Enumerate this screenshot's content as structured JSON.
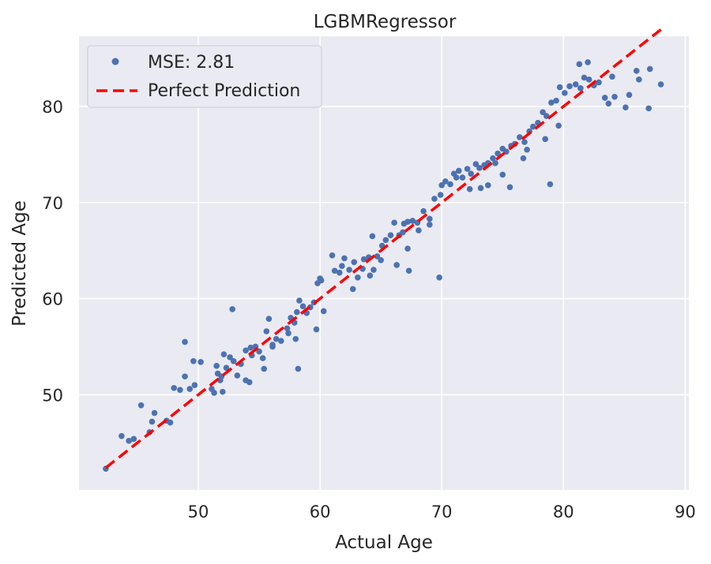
{
  "chart_data": {
    "type": "scatter",
    "title": "LGBMRegressor",
    "xlabel": "Actual Age",
    "ylabel": "Predicted Age",
    "xlim": [
      40.2,
      90.3
    ],
    "ylim": [
      40.1,
      87.3
    ],
    "xticks": [
      50,
      60,
      70,
      80,
      90
    ],
    "yticks": [
      50,
      60,
      70,
      80
    ],
    "grid": true,
    "legend_position": "top-left",
    "colors": {
      "background": "#eaeaf2",
      "grid": "#ffffff",
      "points": "#4c72b0",
      "reference_line": "#ff0000"
    },
    "series": [
      {
        "name": "MSE: 2.81",
        "kind": "scatter",
        "color": "#4c72b0",
        "x": [
          42.4,
          43.7,
          44.3,
          44.7,
          45.3,
          46.0,
          46.2,
          46.4,
          47.4,
          47.7,
          48.0,
          48.5,
          48.9,
          49.3,
          49.6,
          49.7,
          50.2,
          51.1,
          51.3,
          51.5,
          51.8,
          51.9,
          52.0,
          52.1,
          52.3,
          52.6,
          52.9,
          53.2,
          53.5,
          53.9,
          54.2,
          54.4,
          54.7,
          55.0,
          55.3,
          55.6,
          55.8,
          56.1,
          56.4,
          56.8,
          57.3,
          57.6,
          57.9,
          58.1,
          58.3,
          58.6,
          58.9,
          59.2,
          59.5,
          59.8,
          60.1,
          61.0,
          61.2,
          61.6,
          62.0,
          62.4,
          62.8,
          63.1,
          63.6,
          64.0,
          64.3,
          64.7,
          65.1,
          65.4,
          65.8,
          66.1,
          66.5,
          66.9,
          67.2,
          67.6,
          68.0,
          68.5,
          69.0,
          69.4,
          69.9,
          70.3,
          70.7,
          71.0,
          71.4,
          71.7,
          72.1,
          72.4,
          72.8,
          73.1,
          73.5,
          73.8,
          74.2,
          74.6,
          75.0,
          75.3,
          75.7,
          76.0,
          76.4,
          76.8,
          77.2,
          77.5,
          77.9,
          78.3,
          78.6,
          79.0,
          79.4,
          79.7,
          80.1,
          81.0,
          81.4,
          81.7,
          82.1,
          82.5,
          82.9,
          83.4,
          84.2,
          85.1,
          86.2,
          87.0,
          88.0,
          54.3,
          56.1,
          58.0,
          60.3,
          62.7,
          64.4,
          66.3,
          67.2,
          68.1,
          69.0,
          72.3,
          73.8,
          75.0,
          76.7,
          78.5,
          79.6,
          60.0,
          61.8,
          63.5,
          65.0,
          66.8,
          70.0,
          71.2,
          74.4,
          77.0,
          80.5,
          82.0,
          84.0,
          86.0,
          87.1,
          48.9,
          51.6,
          53.9,
          57.4,
          58.2,
          52.8,
          55.4,
          59.7,
          64.1,
          67.3,
          69.8,
          73.2,
          75.6,
          78.9,
          81.3,
          83.7,
          85.4
        ],
        "y": [
          42.3,
          45.7,
          45.2,
          45.4,
          48.9,
          46.1,
          47.2,
          48.1,
          47.3,
          47.1,
          50.7,
          50.5,
          55.5,
          50.6,
          53.5,
          51.0,
          53.4,
          50.6,
          50.2,
          53.0,
          51.5,
          51.9,
          50.3,
          54.2,
          52.8,
          53.9,
          53.5,
          52.0,
          53.2,
          51.5,
          51.3,
          54.1,
          55.0,
          54.5,
          53.8,
          56.6,
          57.9,
          55.2,
          55.8,
          55.6,
          56.9,
          58.0,
          57.5,
          58.6,
          59.8,
          59.2,
          58.5,
          59.1,
          59.6,
          61.6,
          61.9,
          64.5,
          62.9,
          62.7,
          64.2,
          63.0,
          63.8,
          62.2,
          64.1,
          64.3,
          66.5,
          64.4,
          65.5,
          66.1,
          66.6,
          67.9,
          66.6,
          67.8,
          68.0,
          68.1,
          67.9,
          69.1,
          68.3,
          70.4,
          70.8,
          72.2,
          71.9,
          73.0,
          73.3,
          72.6,
          73.5,
          73.0,
          74.0,
          73.6,
          73.9,
          74.1,
          74.6,
          75.1,
          75.6,
          75.3,
          75.9,
          76.1,
          76.8,
          76.3,
          77.4,
          77.9,
          78.3,
          79.4,
          79.0,
          80.4,
          80.6,
          82.0,
          81.4,
          82.3,
          81.9,
          83.0,
          82.8,
          82.2,
          82.5,
          80.9,
          81.0,
          79.9,
          82.8,
          79.8,
          82.3,
          54.9,
          55.0,
          55.8,
          58.7,
          61.0,
          63.0,
          63.5,
          65.2,
          67.1,
          67.7,
          71.4,
          71.8,
          72.9,
          74.6,
          76.6,
          78.0,
          62.1,
          63.4,
          63.1,
          64.0,
          66.9,
          71.8,
          72.6,
          74.1,
          75.5,
          82.1,
          84.6,
          83.1,
          83.7,
          83.9,
          51.9,
          52.2,
          54.6,
          56.4,
          52.7,
          58.9,
          52.7,
          56.8,
          62.4,
          62.9,
          62.2,
          71.5,
          71.6,
          71.9,
          84.4,
          80.3,
          81.2
        ]
      },
      {
        "name": "Perfect Prediction",
        "kind": "line",
        "style": "dashed",
        "color": "#ff0000",
        "x": [
          42.4,
          88.0
        ],
        "y": [
          42.4,
          88.0
        ]
      }
    ]
  }
}
